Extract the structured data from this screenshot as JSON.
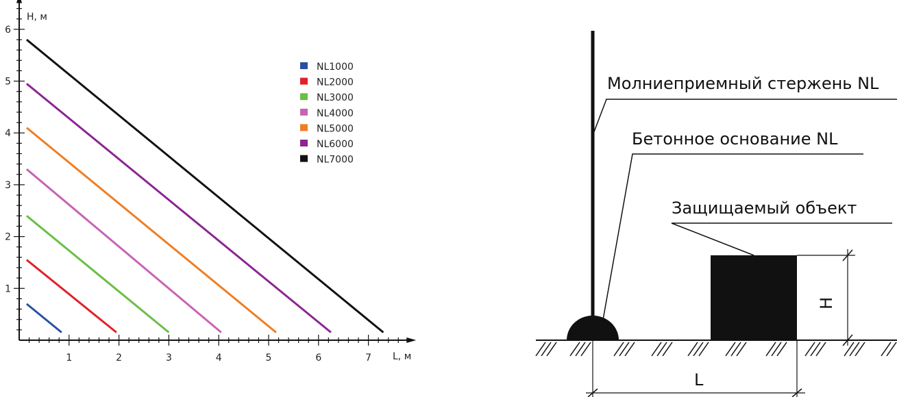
{
  "chart_data": {
    "type": "line",
    "xlabel": "L, м",
    "ylabel": "H, м",
    "x_ticks": [
      "1",
      "2",
      "3",
      "4",
      "5",
      "6",
      "7"
    ],
    "y_ticks": [
      "1",
      "2",
      "3",
      "4",
      "5",
      "6"
    ],
    "xlim": [
      0,
      7.6
    ],
    "ylim": [
      0,
      6.4
    ],
    "grid": false,
    "legend_position": "top-right",
    "series": [
      {
        "name": "NL1000",
        "color": "#2b4ea0",
        "x": [
          0.15,
          0.85
        ],
        "y": [
          0.7,
          0.15
        ]
      },
      {
        "name": "NL2000",
        "color": "#e0202a",
        "x": [
          0.15,
          1.95
        ],
        "y": [
          1.55,
          0.15
        ]
      },
      {
        "name": "NL3000",
        "color": "#6abf45",
        "x": [
          0.15,
          3.0
        ],
        "y": [
          2.4,
          0.15
        ]
      },
      {
        "name": "NL4000",
        "color": "#c763b3",
        "x": [
          0.15,
          4.05
        ],
        "y": [
          3.3,
          0.15
        ]
      },
      {
        "name": "NL5000",
        "color": "#f07d22",
        "x": [
          0.15,
          5.15
        ],
        "y": [
          4.1,
          0.15
        ]
      },
      {
        "name": "NL6000",
        "color": "#8a2592",
        "x": [
          0.15,
          6.25
        ],
        "y": [
          4.95,
          0.15
        ]
      },
      {
        "name": "NL7000",
        "color": "#111111",
        "x": [
          0.15,
          7.3
        ],
        "y": [
          5.8,
          0.15
        ]
      }
    ]
  },
  "diagram": {
    "rod_label": "Молниеприемный стержень NL",
    "base_label": "Бетонное основание NL",
    "object_label": "Защищаемый объект",
    "height_label": "H",
    "distance_label": "L"
  }
}
